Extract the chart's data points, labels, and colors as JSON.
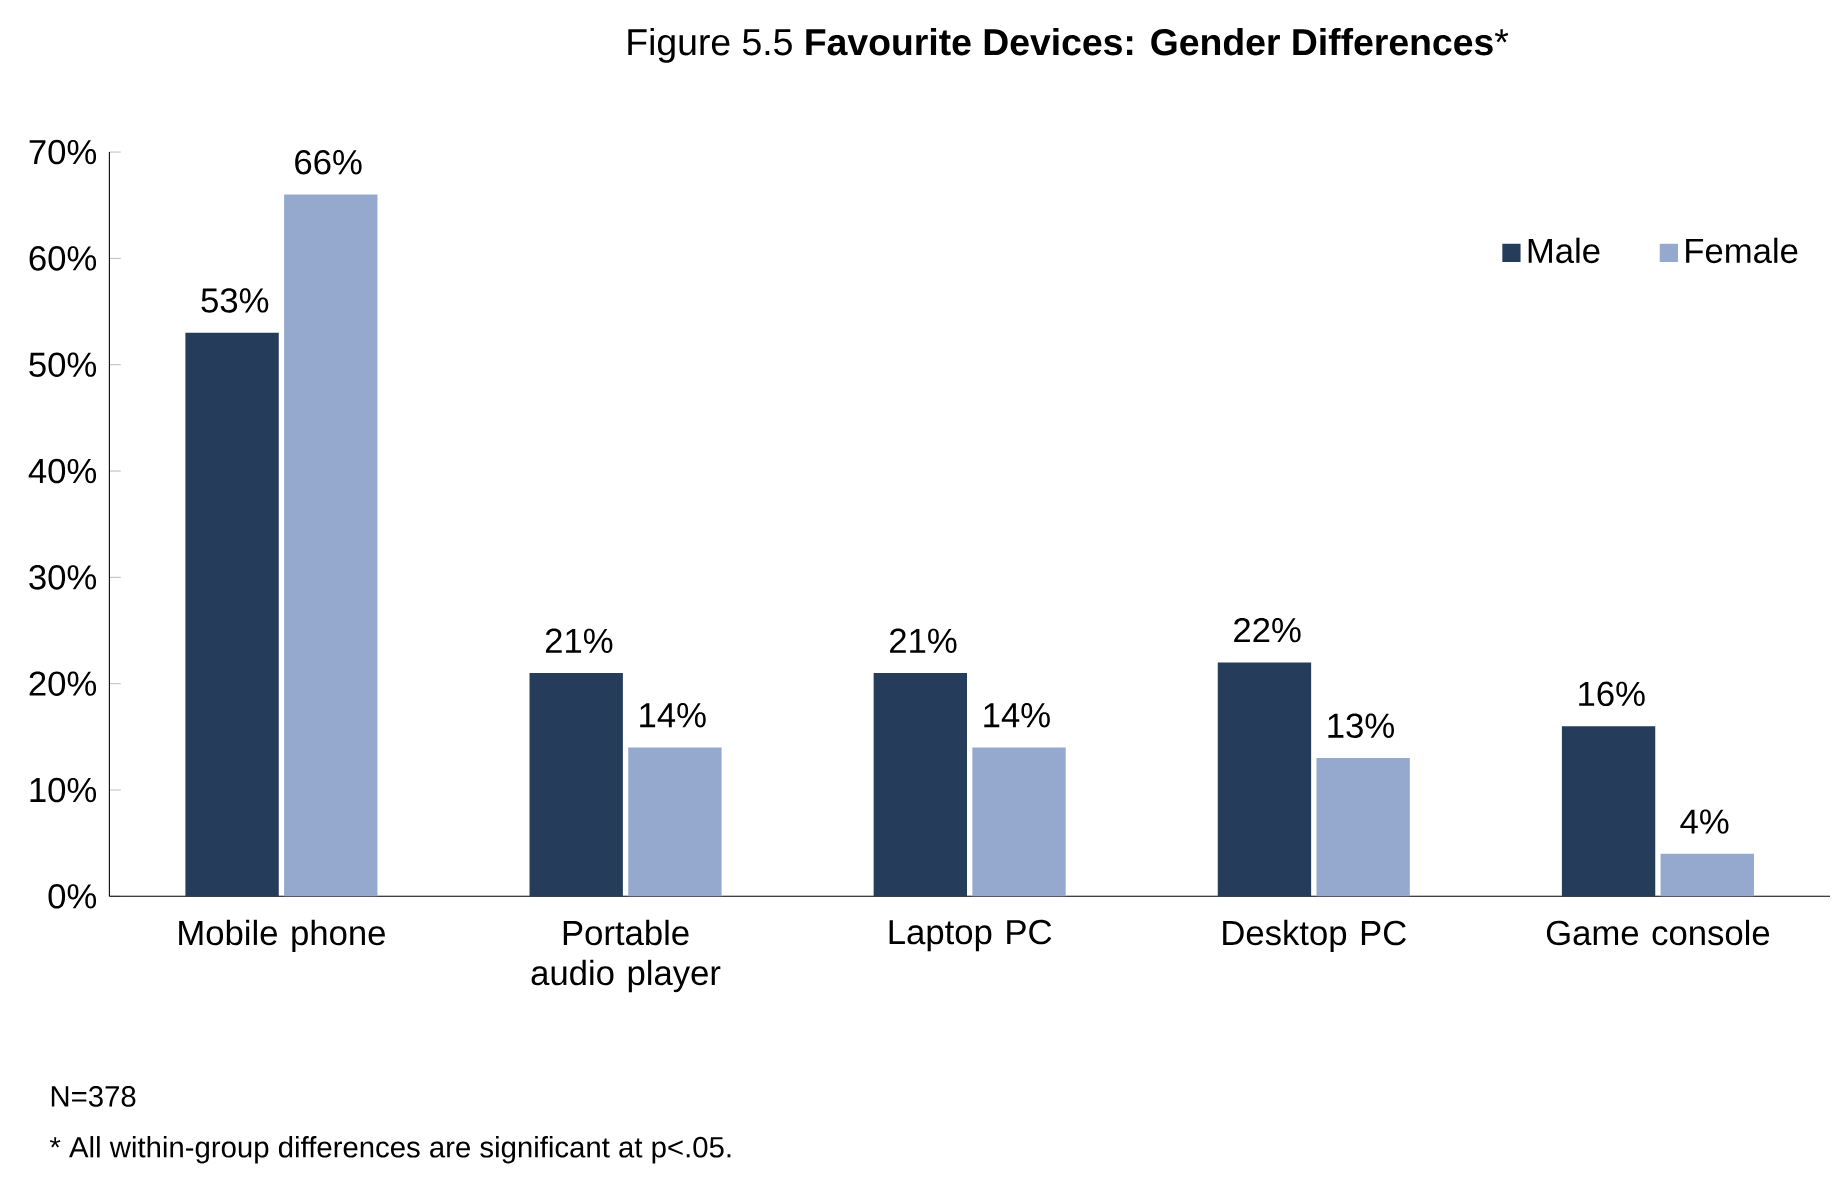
{
  "chart_data": {
    "type": "bar",
    "title": "Figure 5.5 **Favourite Devices: Gender Differences***",
    "categories": [
      "Mobile phone",
      "Portable audio player",
      "Laptop PC",
      "Desktop PC",
      "Game console"
    ],
    "series": [
      {
        "name": "Male",
        "color": "#253d5b",
        "values": [
          53,
          21,
          21,
          22,
          16
        ],
        "value_labels": [
          "53%",
          "21%",
          "21%",
          "22%",
          "16%"
        ]
      },
      {
        "name": "Female",
        "color": "#95a9cf",
        "values": [
          66,
          14,
          14,
          13,
          4
        ],
        "value_labels": [
          "66%",
          "14%",
          "14%",
          "13%",
          "4%"
        ]
      }
    ],
    "ylim": [
      0,
      70
    ],
    "yticks": [
      {
        "value": 0,
        "label": "0%"
      },
      {
        "value": 10,
        "label": "10%"
      },
      {
        "value": 20,
        "label": "20%"
      },
      {
        "value": 30,
        "label": "30%"
      },
      {
        "value": 40,
        "label": "40%"
      },
      {
        "value": 50,
        "label": "50%"
      },
      {
        "value": 60,
        "label": "60%"
      },
      {
        "value": 70,
        "label": "70%"
      }
    ],
    "grid": false,
    "legend": "top right",
    "annotations": [
      "N=378",
      "* All within-group differences are significant at p<.05."
    ]
  }
}
